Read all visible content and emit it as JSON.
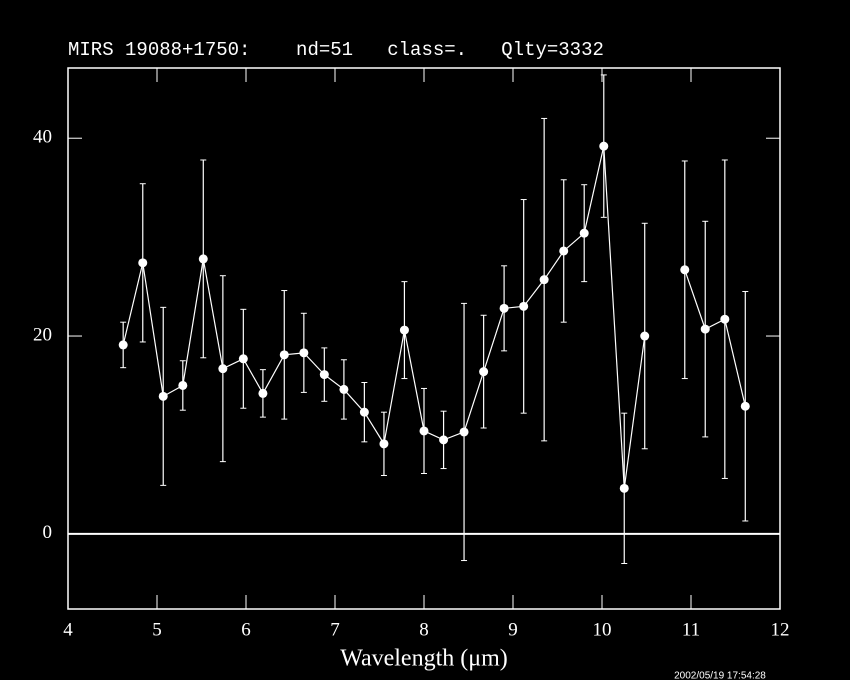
{
  "chart_data": {
    "type": "errorbar",
    "title": "MIRS 19088+1750:    nd=51   class=.   Qlty=3332",
    "x_label": "Wavelength (μm)",
    "timestamp": "2002/05/19 17:54:28",
    "x": [
      4.62,
      4.84,
      5.07,
      5.29,
      5.52,
      5.74,
      5.97,
      6.19,
      6.43,
      6.65,
      6.88,
      7.1,
      7.33,
      7.55,
      7.78,
      8.0,
      8.22,
      8.45,
      8.67,
      8.9,
      9.12,
      9.35,
      9.57,
      9.8,
      10.02,
      10.25,
      10.48,
      10.7,
      10.93,
      11.16,
      11.38,
      11.61
    ],
    "values": [
      19.1,
      27.4,
      13.9,
      15.0,
      27.8,
      16.7,
      17.7,
      14.2,
      18.1,
      18.3,
      16.1,
      14.6,
      12.3,
      9.1,
      20.6,
      10.4,
      9.5,
      10.3,
      16.4,
      22.8,
      23.0,
      25.7,
      28.6,
      30.4,
      39.2,
      4.6,
      20.0,
      null,
      26.7,
      20.7,
      21.7,
      12.9
    ],
    "errors": [
      2.3,
      8.0,
      9.0,
      2.5,
      10.0,
      9.4,
      5.0,
      2.4,
      6.5,
      4.0,
      2.7,
      3.0,
      3.0,
      3.2,
      4.9,
      4.3,
      2.9,
      13.0,
      5.7,
      4.3,
      10.8,
      16.3,
      7.2,
      4.9,
      7.2,
      7.6,
      11.4,
      null,
      11.0,
      10.9,
      16.1,
      11.6
    ],
    "color": "#ffffff",
    "hline": 0,
    "xlim": [
      4,
      12
    ],
    "xticks": [
      4,
      5,
      6,
      7,
      8,
      9,
      10,
      11,
      12
    ],
    "ylim": [
      -7.6,
      47.1
    ],
    "yticks": [
      0,
      20,
      40
    ]
  }
}
